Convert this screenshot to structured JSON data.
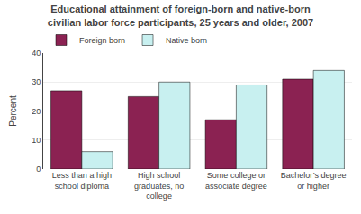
{
  "chart_data": {
    "type": "bar",
    "title": "Educational attainment of foreign-born and native-born\ncivilian labor force participants, 25 years and older, 2007",
    "categories": [
      "Less than a high\nschool diploma",
      "High school\ngraduates, no\ncollege",
      "Some college or\nassociate degree",
      "Bachelor’s degree\nor higher"
    ],
    "series": [
      {
        "name": "Foreign born",
        "color": "#8B2252",
        "values": [
          27,
          25,
          17,
          31
        ]
      },
      {
        "name": "Native born",
        "color": "#C8F0F0",
        "values": [
          6,
          30,
          29,
          34
        ]
      }
    ],
    "ylabel": "Percent",
    "ylim": [
      0,
      40
    ],
    "yticks": [
      0,
      10,
      20,
      30,
      40
    ],
    "grid": true,
    "legend": "upper left"
  }
}
